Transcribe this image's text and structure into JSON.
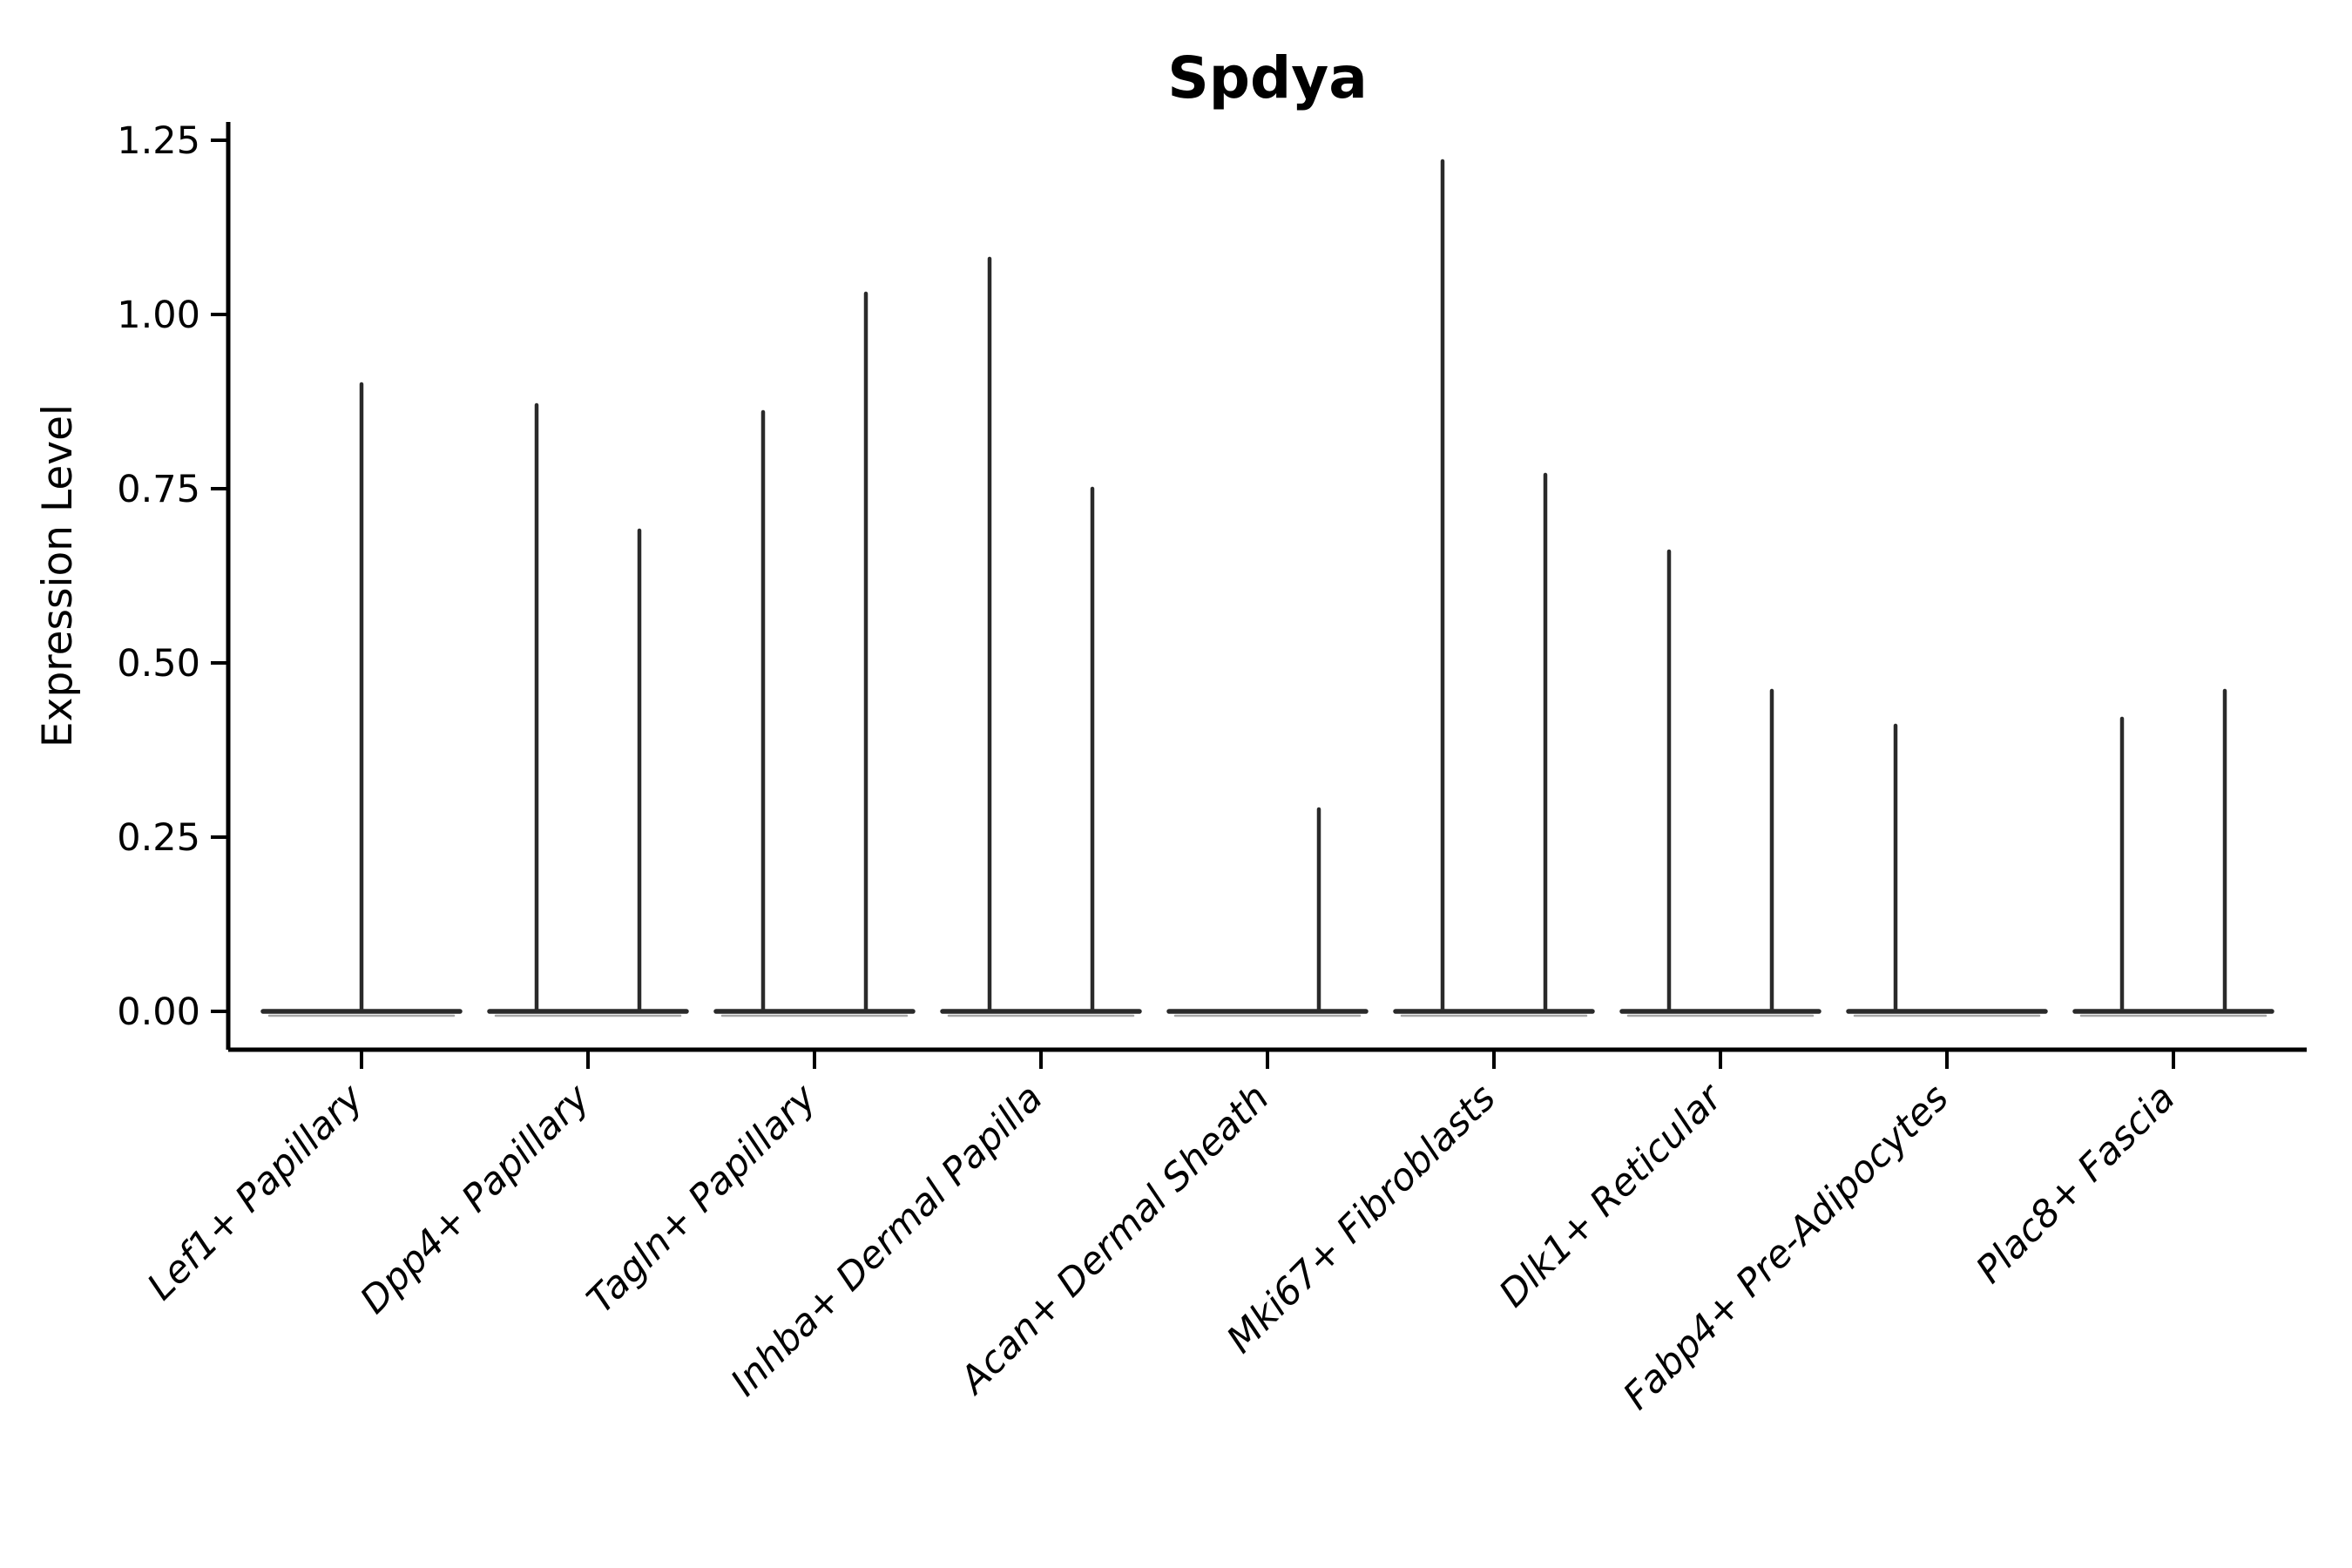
{
  "chart_data": {
    "type": "violin",
    "title": "Spdya",
    "xlabel": "",
    "ylabel": "Expression Level",
    "ylim": [
      -0.06,
      1.3
    ],
    "yticks": [
      0,
      0.25,
      0.5,
      0.75,
      1.0,
      1.25
    ],
    "ytick_labels": [
      "0.00",
      "0.25",
      "0.50",
      "0.75",
      "1.00",
      "1.25"
    ],
    "grid": false,
    "legend": "none",
    "baseline_value": 0,
    "categories": [
      "Lef1+ Papillary",
      "Dpp4+ Papillary",
      "Tagln+ Papillary",
      "Inhba+ Dermal Papilla",
      "Acan+ Dermal Sheath",
      "Mki67+ Fibroblasts",
      "Dlk1+ Reticular",
      "Fabp4+ Pre-Adipocytes",
      "Plac8+ Fascia"
    ],
    "violins": [
      {
        "category": "Lef1+ Papillary",
        "spikes": [
          {
            "slot": "center",
            "max": 0.9
          }
        ]
      },
      {
        "category": "Dpp4+ Papillary",
        "spikes": [
          {
            "slot": "left",
            "max": 0.87
          },
          {
            "slot": "right",
            "max": 0.69
          }
        ]
      },
      {
        "category": "Tagln+ Papillary",
        "spikes": [
          {
            "slot": "left",
            "max": 0.86
          },
          {
            "slot": "right",
            "max": 1.03
          }
        ]
      },
      {
        "category": "Inhba+ Dermal Papilla",
        "spikes": [
          {
            "slot": "left",
            "max": 1.08
          },
          {
            "slot": "right",
            "max": 0.75
          }
        ]
      },
      {
        "category": "Acan+ Dermal Sheath",
        "spikes": [
          {
            "slot": "right",
            "max": 0.29
          }
        ]
      },
      {
        "category": "Mki67+ Fibroblasts",
        "spikes": [
          {
            "slot": "left",
            "max": 1.22
          },
          {
            "slot": "right",
            "max": 0.77
          }
        ]
      },
      {
        "category": "Dlk1+ Reticular",
        "spikes": [
          {
            "slot": "left",
            "max": 0.66
          },
          {
            "slot": "right",
            "max": 0.46
          }
        ]
      },
      {
        "category": "Fabp4+ Pre-Adipocytes",
        "spikes": [
          {
            "slot": "left",
            "max": 0.41
          }
        ]
      },
      {
        "category": "Plac8+ Fascia",
        "spikes": [
          {
            "slot": "left",
            "max": 0.42
          },
          {
            "slot": "right",
            "max": 0.46
          }
        ]
      }
    ],
    "colors": {
      "violin_stroke": "#2a2a2a",
      "violin_edge_shadow": "#8a8a8a",
      "axis": "#000000",
      "background": "#ffffff"
    }
  }
}
